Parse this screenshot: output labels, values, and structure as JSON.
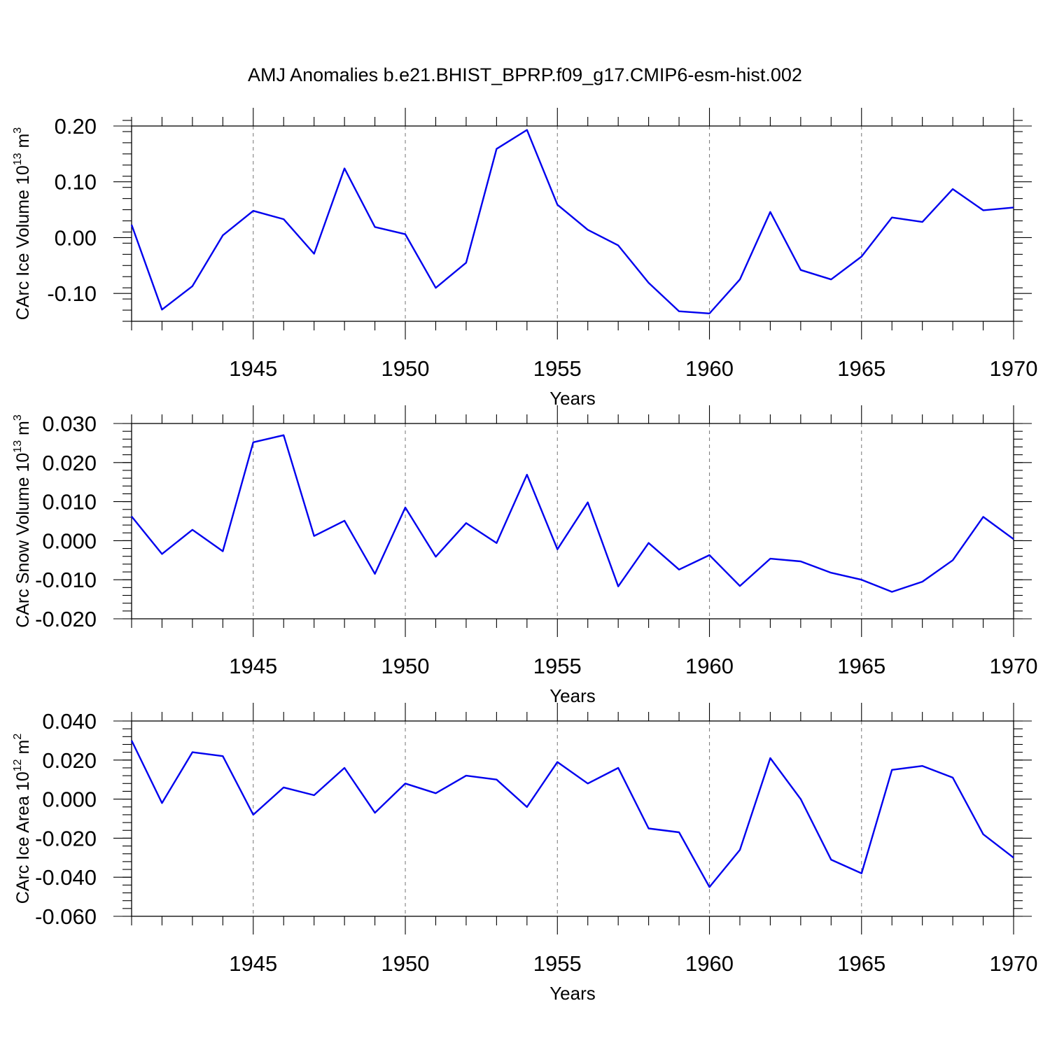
{
  "title": "AMJ Anomalies b.e21.BHIST_BPRP.f09_g17.CMIP6-esm-hist.002",
  "colors": {
    "line": "#0000ee",
    "grid": "#808080",
    "axes": "#000000"
  },
  "chart_data": [
    {
      "type": "line",
      "ylabel_prefix": "CArc Ice Volume 10",
      "ylabel_exp": "13",
      "ylabel_unit": " m",
      "ylabel_unit_exp": "3",
      "xlabel": "Years",
      "xlim": [
        1941,
        1970
      ],
      "ylim": [
        -0.15,
        0.2
      ],
      "yticks": [
        -0.1,
        0,
        0.1,
        0.2
      ],
      "ytick_labels": [
        "-0.10",
        "0.00",
        "0.10",
        "0.20"
      ],
      "yminor_step": 0.02,
      "xticks": [
        1945,
        1950,
        1955,
        1960,
        1965,
        1970
      ],
      "xtick_labels": [
        "1945",
        "1950",
        "1955",
        "1960",
        "1965",
        "1970"
      ],
      "grid": "dashed vertical at labeled years",
      "x": [
        1941,
        1942,
        1943,
        1944,
        1945,
        1946,
        1947,
        1948,
        1949,
        1950,
        1951,
        1952,
        1953,
        1954,
        1955,
        1956,
        1957,
        1958,
        1959,
        1960,
        1961,
        1962,
        1963,
        1964,
        1965,
        1966,
        1967,
        1968,
        1969,
        1970
      ],
      "values": [
        0.023,
        -0.129,
        -0.087,
        0.004,
        0.048,
        0.033,
        -0.029,
        0.124,
        0.019,
        0.006,
        -0.09,
        -0.045,
        0.159,
        0.193,
        0.059,
        0.014,
        -0.014,
        -0.081,
        -0.132,
        -0.136,
        -0.075,
        0.046,
        -0.058,
        -0.075,
        -0.034,
        0.036,
        0.028,
        0.087,
        0.049,
        0.054
      ]
    },
    {
      "type": "line",
      "ylabel_prefix": "CArc Snow Volume 10",
      "ylabel_exp": "13",
      "ylabel_unit": " m",
      "ylabel_unit_exp": "3",
      "xlabel": "Years",
      "xlim": [
        1941,
        1970
      ],
      "ylim": [
        -0.02,
        0.03
      ],
      "yticks": [
        -0.02,
        -0.01,
        0,
        0.01,
        0.02,
        0.03
      ],
      "ytick_labels": [
        "-0.020",
        "-0.010",
        "0.000",
        "0.010",
        "0.020",
        "0.030"
      ],
      "yminor_step": 0.002,
      "xticks": [
        1945,
        1950,
        1955,
        1960,
        1965,
        1970
      ],
      "xtick_labels": [
        "1945",
        "1950",
        "1955",
        "1960",
        "1965",
        "1970"
      ],
      "grid": "dashed vertical at labeled years",
      "x": [
        1941,
        1942,
        1943,
        1944,
        1945,
        1946,
        1947,
        1948,
        1949,
        1950,
        1951,
        1952,
        1953,
        1954,
        1955,
        1956,
        1957,
        1958,
        1959,
        1960,
        1961,
        1962,
        1963,
        1964,
        1965,
        1966,
        1967,
        1968,
        1969,
        1970
      ],
      "values": [
        0.0062,
        -0.0034,
        0.0028,
        -0.0027,
        0.0252,
        0.027,
        0.0012,
        0.0051,
        -0.0085,
        0.0085,
        -0.0041,
        0.0045,
        -0.0006,
        0.0169,
        -0.0022,
        0.0098,
        -0.0117,
        -0.0006,
        -0.0074,
        -0.0037,
        -0.0116,
        -0.0046,
        -0.0053,
        -0.0082,
        -0.01,
        -0.0131,
        -0.0105,
        -0.005,
        0.0061,
        0.0004
      ]
    },
    {
      "type": "line",
      "ylabel_prefix": "CArc Ice Area 10",
      "ylabel_exp": "12",
      "ylabel_unit": " m",
      "ylabel_unit_exp": "2",
      "xlabel": "Years",
      "xlim": [
        1941,
        1970
      ],
      "ylim": [
        -0.06,
        0.04
      ],
      "yticks": [
        -0.06,
        -0.04,
        -0.02,
        0,
        0.02,
        0.04
      ],
      "ytick_labels": [
        "-0.060",
        "-0.040",
        "-0.020",
        "0.000",
        "0.020",
        "0.040"
      ],
      "yminor_step": 0.004,
      "xticks": [
        1945,
        1950,
        1955,
        1960,
        1965,
        1970
      ],
      "xtick_labels": [
        "1945",
        "1950",
        "1955",
        "1960",
        "1965",
        "1970"
      ],
      "grid": "dashed vertical at labeled years",
      "x": [
        1941,
        1942,
        1943,
        1944,
        1945,
        1946,
        1947,
        1948,
        1949,
        1950,
        1951,
        1952,
        1953,
        1954,
        1955,
        1956,
        1957,
        1958,
        1959,
        1960,
        1961,
        1962,
        1963,
        1964,
        1965,
        1966,
        1967,
        1968,
        1969,
        1970
      ],
      "values": [
        0.03,
        -0.002,
        0.024,
        0.022,
        -0.008,
        0.006,
        0.002,
        0.016,
        -0.007,
        0.008,
        0.003,
        0.012,
        0.01,
        -0.004,
        0.019,
        0.008,
        0.016,
        -0.015,
        -0.017,
        -0.045,
        -0.026,
        0.021,
        0.0,
        -0.031,
        -0.038,
        0.015,
        0.017,
        0.011,
        -0.018,
        -0.03
      ]
    }
  ]
}
